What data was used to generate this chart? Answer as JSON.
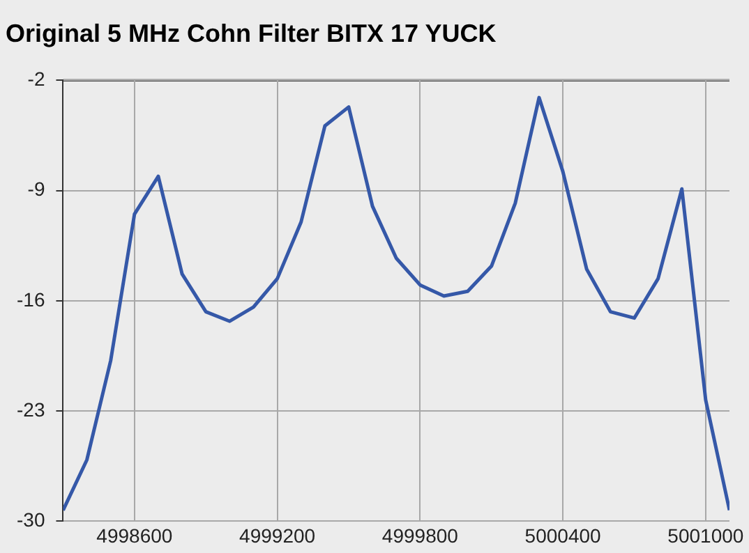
{
  "chart_data": {
    "type": "line",
    "title": "Original 5 MHz Cohn Filter BITX 17 YUCK",
    "x": [
      4998300,
      4998400,
      4998500,
      4998600,
      4998700,
      4998800,
      4998900,
      4999000,
      4999100,
      4999200,
      4999300,
      4999400,
      4999500,
      4999600,
      4999700,
      4999800,
      4999900,
      5000000,
      5000100,
      5000200,
      5000300,
      5000400,
      5000500,
      5000600,
      5000700,
      5000800,
      5000900,
      5001000,
      5001100
    ],
    "series": [
      {
        "color": "#3558a8",
        "values": [
          -29.3,
          -26.1,
          -19.8,
          -10.5,
          -8.1,
          -14.3,
          -16.7,
          -17.3,
          -16.4,
          -14.6,
          -11.0,
          -4.9,
          -3.7,
          -10.0,
          -13.3,
          -15.0,
          -15.7,
          -15.4,
          -13.8,
          -9.8,
          -3.1,
          -7.8,
          -14.0,
          -16.7,
          -17.1,
          -14.6,
          -8.9,
          -22.3,
          -29.3
        ]
      }
    ],
    "xlim": [
      4998300,
      5001100
    ],
    "xticks": [
      4998600,
      4999200,
      4999800,
      5000400,
      5001000
    ],
    "ylim": [
      -30,
      -2
    ],
    "yticks": [
      -30,
      -23,
      -16,
      -9,
      -2
    ],
    "grid": true,
    "legend": false,
    "marker": "none",
    "line_style": "solid"
  }
}
